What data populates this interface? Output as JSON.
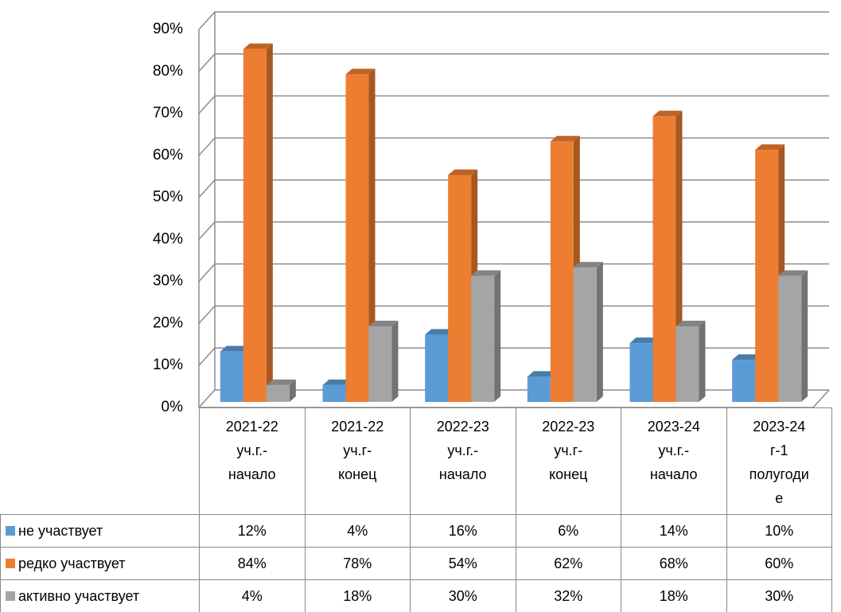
{
  "chart_data": {
    "type": "bar3d",
    "categories": [
      "2021-22 уч.г.-начало",
      "2021-22 уч.г-конец",
      "2022-23 уч.г.-начало",
      "2022-23 уч.г-конец",
      "2023-24 уч.г.-начало",
      "2023-24 г-1 полугодие"
    ],
    "series": [
      {
        "name": "не участвует",
        "color": "#5b9bd5",
        "values": [
          12,
          4,
          16,
          6,
          14,
          10
        ],
        "value_labels": [
          "12%",
          "4%",
          "16%",
          "6%",
          "14%",
          "10%"
        ]
      },
      {
        "name": "редко участвует",
        "color": "#ed7d31",
        "values": [
          84,
          78,
          54,
          62,
          68,
          60
        ],
        "value_labels": [
          "84%",
          "78%",
          "54%",
          "62%",
          "68%",
          "60%"
        ]
      },
      {
        "name": "активно участвует",
        "color": "#a5a5a5",
        "values": [
          4,
          18,
          30,
          32,
          18,
          30
        ],
        "value_labels": [
          "4%",
          "18%",
          "30%",
          "32%",
          "18%",
          "30%"
        ]
      }
    ],
    "ylim": [
      0,
      90
    ],
    "yticks": [
      {
        "value": 0,
        "label": "0%"
      },
      {
        "value": 10,
        "label": "10%"
      },
      {
        "value": 20,
        "label": "20%"
      },
      {
        "value": 30,
        "label": "30%"
      },
      {
        "value": 40,
        "label": "40%"
      },
      {
        "value": 50,
        "label": "50%"
      },
      {
        "value": 60,
        "label": "60%"
      },
      {
        "value": 70,
        "label": "70%"
      },
      {
        "value": 80,
        "label": "80%"
      },
      {
        "value": 90,
        "label": "90%"
      }
    ],
    "grid": true,
    "data_table": true
  }
}
